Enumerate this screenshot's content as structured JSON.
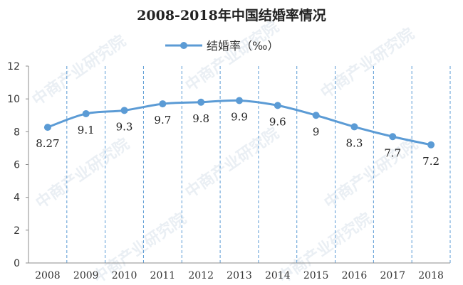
{
  "chart_data": {
    "type": "line",
    "title": "2008-2018年中国结婚率情况",
    "categories": [
      "2008",
      "2009",
      "2010",
      "2011",
      "2012",
      "2013",
      "2014",
      "2015",
      "2016",
      "2017",
      "2018"
    ],
    "series": [
      {
        "name": "结婚率（‰）",
        "values": [
          8.27,
          9.1,
          9.3,
          9.7,
          9.8,
          9.9,
          9.6,
          9,
          8.3,
          7.7,
          7.2
        ],
        "data_labels": [
          "8.27",
          "9.1",
          "9.3",
          "9.7",
          "9.8",
          "9.9",
          "9.6",
          "9",
          "8.3",
          "7.7",
          "7.2"
        ],
        "color": "#5B9BD5"
      }
    ],
    "y_ticks": [
      "0",
      "2",
      "4",
      "6",
      "8",
      "10",
      "12"
    ],
    "ylim": [
      0,
      12
    ],
    "grid": "vertical-dashed",
    "legend": "top-center",
    "smooth": true
  },
  "watermark": "中商产业研究院"
}
